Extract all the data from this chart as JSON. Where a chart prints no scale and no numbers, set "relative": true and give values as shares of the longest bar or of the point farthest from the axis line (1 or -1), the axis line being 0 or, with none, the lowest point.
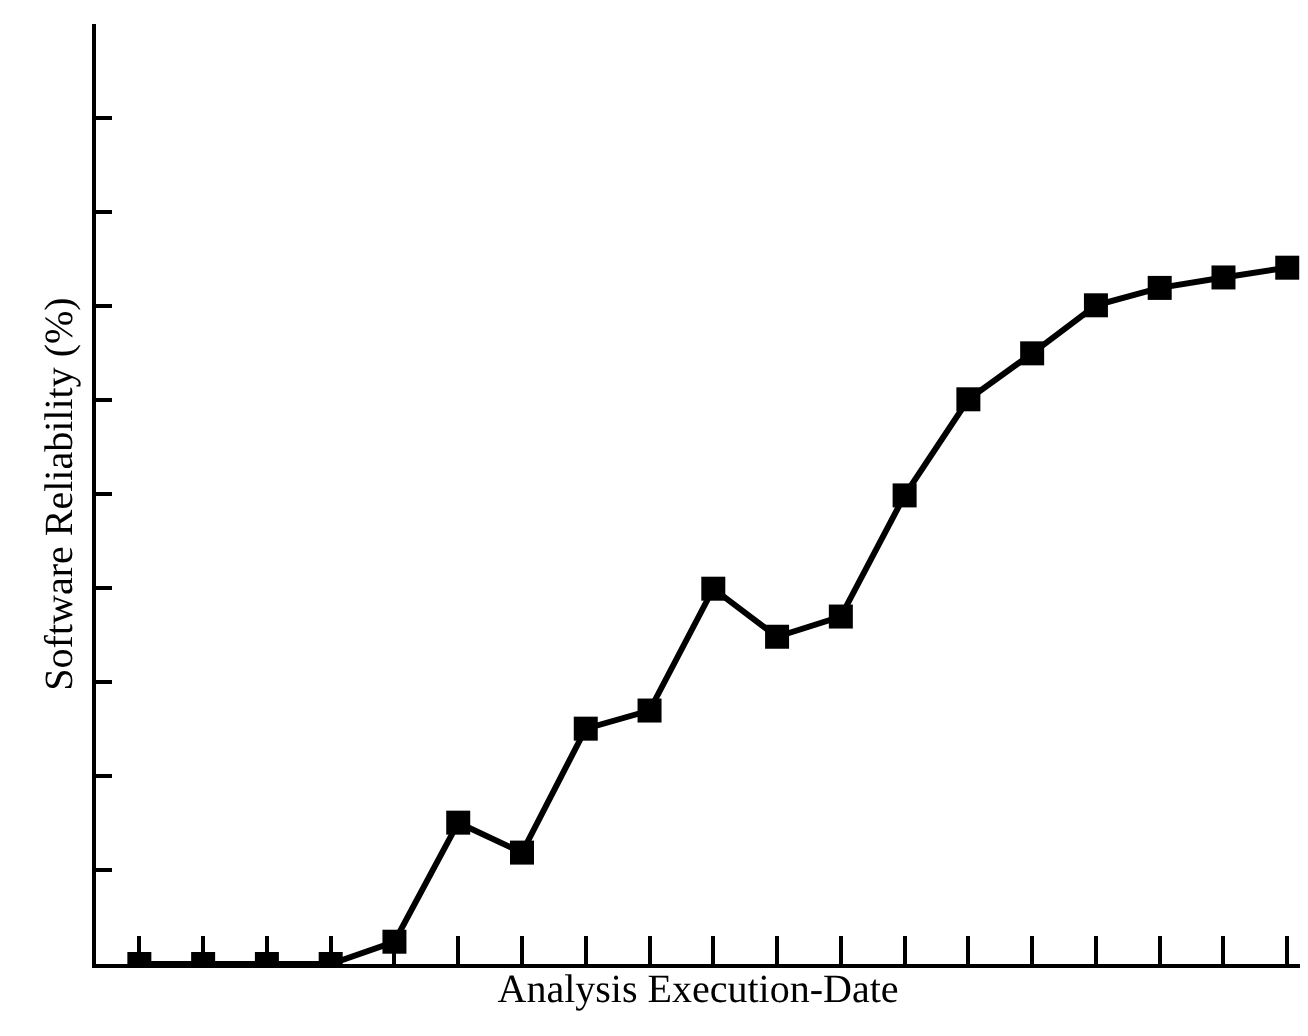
{
  "chart_data": {
    "type": "line",
    "xlabel": "Analysis Execution-Date",
    "ylabel": "Software Reliability (%)",
    "relative": true,
    "tick_labels": false,
    "marker": "square",
    "line_style": "solid",
    "categories": [
      null,
      null,
      null,
      null,
      null,
      null,
      null,
      null,
      null,
      null,
      null,
      null,
      null,
      null,
      null,
      null,
      null,
      null,
      null
    ],
    "series": [
      {
        "color": "#000000",
        "values": [
          0,
          0,
          0,
          0,
          0.032,
          0.203,
          0.16,
          0.338,
          0.364,
          0.539,
          0.47,
          0.499,
          0.673,
          0.811,
          0.877,
          0.946,
          0.971,
          0.986,
          1
        ]
      }
    ]
  }
}
